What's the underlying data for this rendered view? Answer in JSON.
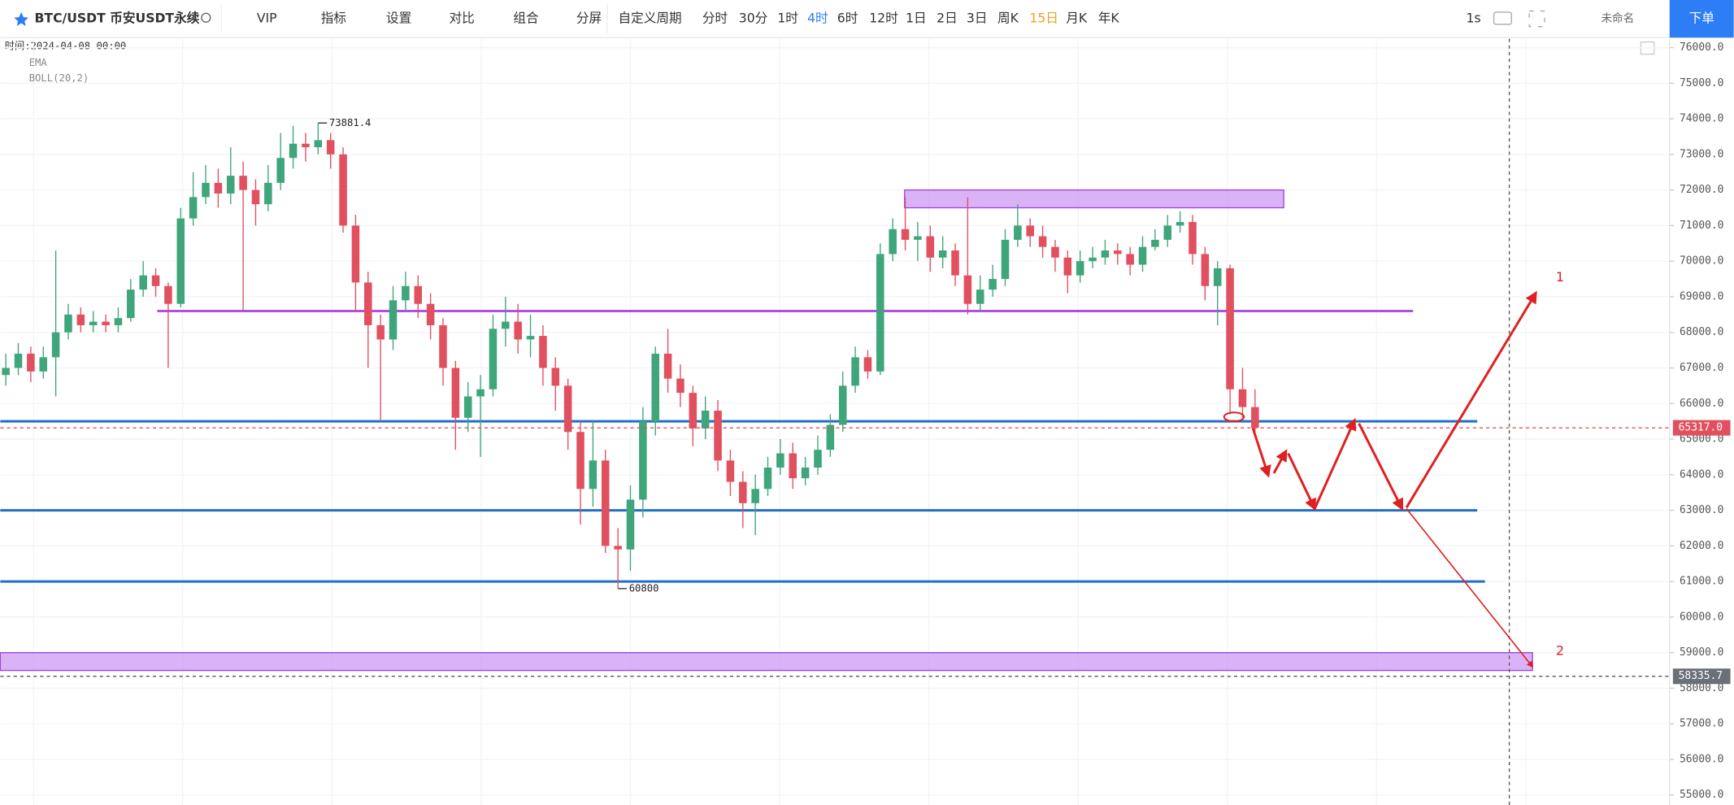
{
  "toolbar": {
    "symbol": "BTC/USDT 币安USDT永续",
    "buttons": [
      "VIP",
      "指标",
      "设置",
      "对比",
      "组合",
      "分屏"
    ],
    "custom_period": "自定义周期",
    "periods": [
      {
        "label": "分时"
      },
      {
        "label": "30分"
      },
      {
        "label": "1时"
      },
      {
        "label": "4时",
        "color": "#2d7df6"
      },
      {
        "label": "6时"
      },
      {
        "label": "12时"
      },
      {
        "label": "1日"
      },
      {
        "label": "2日"
      },
      {
        "label": "3日"
      },
      {
        "label": "周K"
      },
      {
        "label": "15日",
        "color": "#f0a020"
      },
      {
        "label": "月K"
      },
      {
        "label": "年K"
      }
    ],
    "interval": "1s",
    "layout_name": "未命名",
    "order_button": "下单"
  },
  "legend": {
    "time": "时间:2024-04-08 00:00",
    "indicators": [
      "EMA",
      "BOLL(20,2)"
    ]
  },
  "chart_data": {
    "type": "candlestick",
    "up_color": "#3fa57a",
    "down_color": "#e0505f",
    "open": [
      66800,
      67000,
      67400,
      66900,
      67300,
      68000,
      68500,
      68200,
      68300,
      68200,
      68400,
      69200,
      69600,
      69300,
      68800,
      71200,
      71800,
      72200,
      71900,
      72400,
      72000,
      71600,
      72200,
      72900,
      73300,
      73200,
      73400,
      73000,
      71000,
      69400,
      68200,
      67800,
      68900,
      69300,
      68800,
      68200,
      67000,
      65600,
      66200,
      66400,
      68100,
      68300,
      67800,
      67900,
      67000,
      66500,
      65200,
      63600,
      64400,
      62000,
      61900,
      63300,
      65500,
      67400,
      66700,
      66300,
      65300,
      65800,
      64400,
      63800,
      63200,
      63600,
      64200,
      64600,
      63900,
      64200,
      64700,
      65400,
      66500,
      67300,
      66900,
      70200,
      70900,
      70600,
      70700,
      70100,
      70300,
      69600,
      68800,
      69200,
      69500,
      70600,
      71000,
      70700,
      70400,
      70100,
      69600,
      70000,
      70100,
      70300,
      70200,
      69900,
      70400,
      70600,
      71000,
      71100,
      70200,
      69300,
      69800,
      66400,
      65900
    ],
    "high": [
      67400,
      67700,
      67600,
      67600,
      70300,
      68800,
      68700,
      68600,
      68500,
      68700,
      69500,
      70000,
      69800,
      69400,
      71500,
      72500,
      72700,
      72600,
      73200,
      72800,
      72300,
      72700,
      73600,
      73800,
      73600,
      73881.4,
      73600,
      73200,
      71300,
      69700,
      68500,
      69300,
      69700,
      69600,
      69100,
      68400,
      67200,
      66600,
      66800,
      68500,
      69000,
      68800,
      68500,
      68200,
      67300,
      66700,
      65500,
      65500,
      64700,
      62500,
      63700,
      65900,
      67600,
      68100,
      67100,
      66500,
      66200,
      66100,
      64700,
      64100,
      64000,
      64500,
      65000,
      64900,
      64500,
      65100,
      65700,
      66900,
      67600,
      67500,
      70500,
      71200,
      71800,
      71100,
      71000,
      70700,
      70500,
      71800,
      69600,
      69900,
      70900,
      71600,
      71200,
      71000,
      70600,
      70300,
      70300,
      70400,
      70600,
      70500,
      70400,
      70700,
      70900,
      71300,
      71400,
      71300,
      70400,
      70000,
      69900,
      67000,
      66400
    ],
    "low": [
      66500,
      66800,
      66600,
      66700,
      66200,
      67800,
      68000,
      68000,
      68000,
      68000,
      68300,
      69000,
      69000,
      67000,
      68700,
      71000,
      71600,
      71500,
      71600,
      68600,
      71000,
      71400,
      72000,
      72600,
      72800,
      73000,
      72600,
      70800,
      68600,
      67000,
      65500,
      67500,
      68600,
      68400,
      67800,
      66500,
      64700,
      65200,
      64500,
      66200,
      67600,
      67400,
      67300,
      66500,
      65800,
      64700,
      62600,
      63100,
      61800,
      60800,
      61300,
      62800,
      65100,
      66300,
      65900,
      64800,
      65000,
      64100,
      63400,
      62500,
      62300,
      63400,
      64000,
      63600,
      63700,
      64000,
      64500,
      65200,
      66300,
      66700,
      66800,
      70000,
      70300,
      70000,
      69700,
      69800,
      69300,
      68500,
      68600,
      69000,
      69300,
      70400,
      70400,
      70100,
      69700,
      69100,
      69400,
      69800,
      69900,
      69900,
      69600,
      69700,
      70300,
      70400,
      70800,
      69900,
      68900,
      68200,
      65700,
      65600,
      65200
    ],
    "close": [
      67000,
      67400,
      66900,
      67300,
      68000,
      68500,
      68200,
      68300,
      68200,
      68400,
      69200,
      69600,
      69300,
      68800,
      71200,
      71800,
      72200,
      71900,
      72400,
      72000,
      71600,
      72200,
      72900,
      73300,
      73200,
      73400,
      73000,
      71000,
      69400,
      68200,
      67800,
      68900,
      69300,
      68800,
      68200,
      67000,
      65600,
      66200,
      66400,
      68100,
      68300,
      67800,
      67900,
      67000,
      66500,
      65200,
      63600,
      64400,
      62000,
      61900,
      63300,
      65500,
      67400,
      66700,
      66300,
      65300,
      65800,
      64400,
      63800,
      63200,
      63600,
      64200,
      64600,
      63900,
      64200,
      64700,
      65400,
      66500,
      67300,
      66900,
      70200,
      70900,
      70600,
      70700,
      70100,
      70300,
      69600,
      68800,
      69200,
      69500,
      70600,
      71000,
      70700,
      70400,
      70100,
      69600,
      70000,
      70100,
      70300,
      70200,
      69900,
      70400,
      70600,
      71000,
      71100,
      70200,
      69300,
      69800,
      66400,
      65900,
      65317
    ],
    "last_price_label": "65317.0",
    "crosshair_price": 58335.7,
    "ylim": [
      54720,
      76250
    ],
    "yticks": [
      {
        "value": 55000,
        "label": "55000.0"
      },
      {
        "value": 56000,
        "label": "56000.0"
      },
      {
        "value": 57000,
        "label": "57000.0"
      },
      {
        "value": 58000,
        "label": "58000.0"
      },
      {
        "value": 59000,
        "label": "59000.0"
      },
      {
        "value": 60000,
        "label": "60000.0"
      },
      {
        "value": 61000,
        "label": "61000.0"
      },
      {
        "value": 62000,
        "label": "62000.0"
      },
      {
        "value": 63000,
        "label": "63000.0"
      },
      {
        "value": 64000,
        "label": "64000.0"
      },
      {
        "value": 65000,
        "label": "65000.0"
      },
      {
        "value": 66000,
        "label": "66000.0"
      },
      {
        "value": 67000,
        "label": "67000.0"
      },
      {
        "value": 68000,
        "label": "68000.0"
      },
      {
        "value": 69000,
        "label": "69000.0"
      },
      {
        "value": 70000,
        "label": "70000.0"
      },
      {
        "value": 71000,
        "label": "71000.0"
      },
      {
        "value": 72000,
        "label": "72000.0"
      },
      {
        "value": 73000,
        "label": "73000.0"
      },
      {
        "value": 74000,
        "label": "74000.0"
      },
      {
        "value": 75000,
        "label": "75000.0"
      },
      {
        "value": 76000,
        "label": "76000.0"
      }
    ],
    "grid": true,
    "hlines": [
      {
        "value": 68600,
        "color": "#b04ee8"
      },
      {
        "value": 65500,
        "color": "#1f6fc5"
      },
      {
        "value": 63000,
        "color": "#1f6fc5"
      },
      {
        "value": 61000,
        "color": "#1f6fc5"
      }
    ],
    "zones": [
      {
        "low": 71500,
        "high": 72000
      },
      {
        "low": 58500,
        "high": 59000
      }
    ],
    "annotations": [
      "1",
      "2"
    ]
  }
}
